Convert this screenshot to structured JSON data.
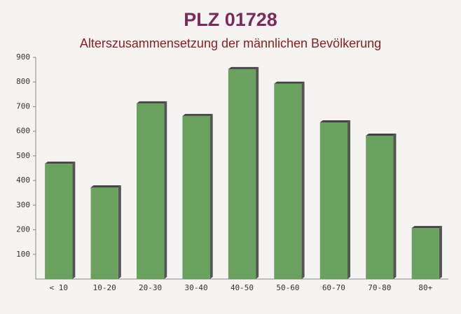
{
  "chart_data": {
    "type": "bar",
    "title": "PLZ 01728",
    "subtitle": "Alterszusammensetzung der männlichen Bevölkerung",
    "categories": [
      "< 10",
      "10-20",
      "20-30",
      "30-40",
      "40-50",
      "50-60",
      "60-70",
      "70-80",
      "80+"
    ],
    "values": [
      468,
      372,
      713,
      662,
      852,
      793,
      636,
      582,
      207
    ],
    "color": "#6aa15e",
    "ylim": [
      0,
      900
    ],
    "yticks": [
      100,
      200,
      300,
      400,
      500,
      600,
      700,
      800,
      900
    ],
    "grid": false
  }
}
